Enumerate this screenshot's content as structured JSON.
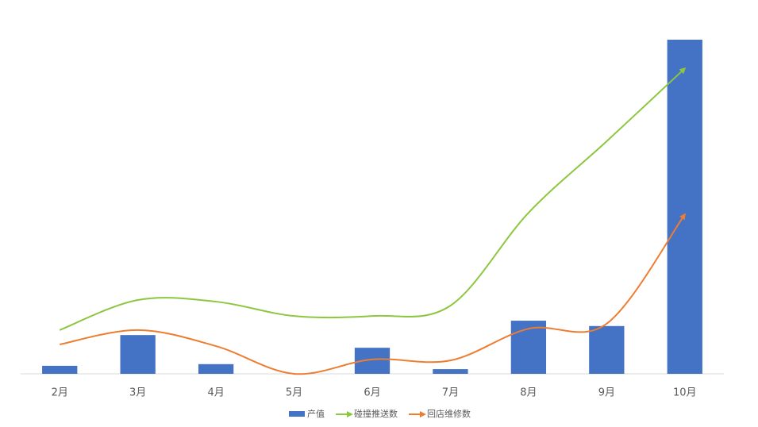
{
  "chart_data": {
    "type": "bar-line",
    "categories": [
      "2月",
      "3月",
      "4月",
      "5月",
      "6月",
      "7月",
      "8月",
      "9月",
      "10月"
    ],
    "series": [
      {
        "name": "产值",
        "type": "bar",
        "color": "#4472c4",
        "values": [
          2.4,
          11.6,
          2.9,
          0,
          7.8,
          1.4,
          15.9,
          14.3,
          100
        ]
      },
      {
        "name": "碰撞推送数",
        "type": "line",
        "color": "#8dc63f",
        "values": [
          13.1,
          22.1,
          21.6,
          17.3,
          17.3,
          20.4,
          48.2,
          69.6,
          91.4
        ]
      },
      {
        "name": "回店维修数",
        "type": "line",
        "color": "#ed7d31",
        "values": [
          8.8,
          13.1,
          8.3,
          0,
          4.3,
          4.0,
          13.5,
          15.0,
          47.7
        ]
      }
    ],
    "ylim": [
      0,
      100
    ],
    "smooth": true,
    "legend": "bottom"
  }
}
